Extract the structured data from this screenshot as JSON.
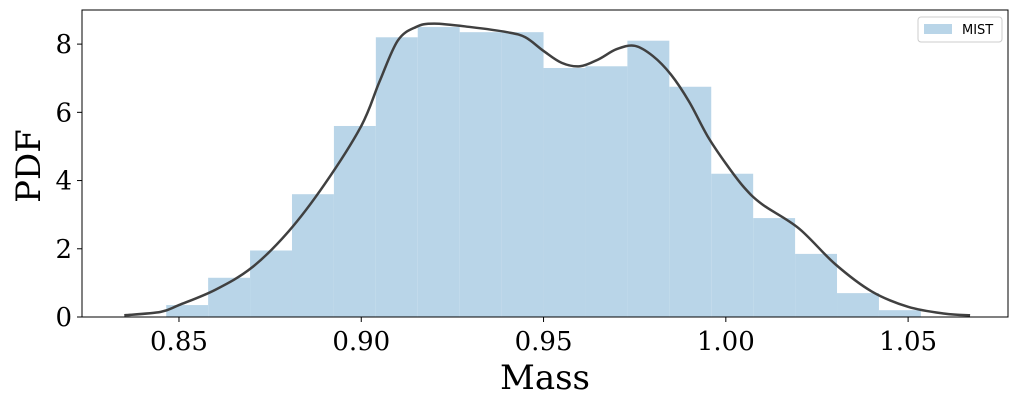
{
  "chart_data": {
    "type": "bar",
    "title": "",
    "xlabel": "Mass",
    "ylabel": "PDF",
    "xlim": [
      0.8234,
      1.0774
    ],
    "ylim": [
      0,
      9.0
    ],
    "grid": false,
    "legend_position": "top-right",
    "x_ticks": [
      0.85,
      0.9,
      0.95,
      1.0,
      1.05
    ],
    "x_tick_labels": [
      "0.85",
      "0.90",
      "0.95",
      "1.00",
      "1.05"
    ],
    "y_ticks": [
      0,
      2,
      4,
      6,
      8
    ],
    "y_tick_labels": [
      "0",
      "2",
      "4",
      "6",
      "8"
    ],
    "histogram": {
      "name": "MIST",
      "color": "#b9d5e8",
      "bin_edges": [
        0.8465,
        0.858,
        0.8695,
        0.881,
        0.8925,
        0.904,
        0.9155,
        0.927,
        0.9385,
        0.95,
        0.9615,
        0.973,
        0.9845,
        0.996,
        1.0075,
        1.019,
        1.0305,
        1.042,
        1.0535
      ],
      "values": [
        0.35,
        1.15,
        1.95,
        3.6,
        5.6,
        8.2,
        8.5,
        8.35,
        8.35,
        7.3,
        7.35,
        8.1,
        6.75,
        4.2,
        2.9,
        1.85,
        0.7,
        0.2
      ]
    },
    "kde_line": {
      "color": "#404040",
      "x": [
        0.835,
        0.845,
        0.85,
        0.86,
        0.87,
        0.88,
        0.89,
        0.9,
        0.905,
        0.91,
        0.915,
        0.92,
        0.93,
        0.94,
        0.945,
        0.95,
        0.955,
        0.96,
        0.965,
        0.97,
        0.975,
        0.98,
        0.985,
        0.99,
        0.995,
        1.0,
        1.005,
        1.01,
        1.02,
        1.03,
        1.04,
        1.05,
        1.06,
        1.067
      ],
      "y": [
        0.05,
        0.15,
        0.35,
        0.8,
        1.45,
        2.5,
        3.9,
        5.6,
        6.9,
        8.1,
        8.5,
        8.6,
        8.5,
        8.35,
        8.2,
        7.8,
        7.45,
        7.35,
        7.55,
        7.85,
        7.95,
        7.65,
        7.1,
        6.3,
        5.3,
        4.5,
        3.8,
        3.3,
        2.6,
        1.55,
        0.75,
        0.3,
        0.1,
        0.05
      ]
    }
  },
  "legend": {
    "label": "MIST"
  }
}
